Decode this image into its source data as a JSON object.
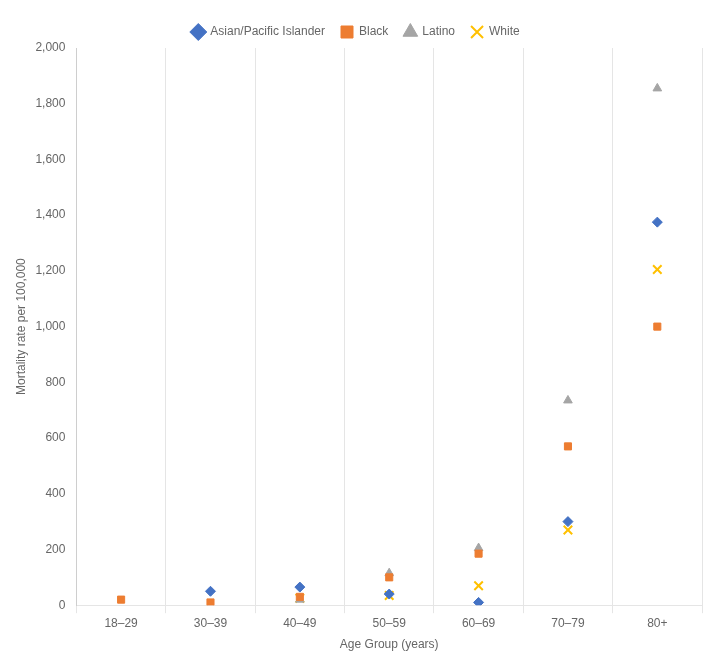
{
  "chart_data": {
    "type": "scatter",
    "x_label": "Age Group (years)",
    "y_label": "Mortality rate per 100,000",
    "categories": [
      "18–29",
      "30–39",
      "40–49",
      "50–59",
      "60–69",
      "70–79",
      "80+"
    ],
    "series": [
      {
        "name": "Asian/Pacific Islander",
        "color": "#4472C4",
        "marker": "diamond",
        "values": [
          null,
          50,
          65,
          40,
          10,
          300,
          1375
        ]
      },
      {
        "name": "Black",
        "color": "#ED7D31",
        "marker": "square",
        "values": [
          20,
          10,
          30,
          100,
          185,
          570,
          1000
        ]
      },
      {
        "name": "Latino",
        "color": "#A5A5A5",
        "marker": "triangle",
        "values": [
          null,
          null,
          20,
          115,
          205,
          735,
          1855
        ]
      },
      {
        "name": "White",
        "color": "#FFC000",
        "marker": "x",
        "values": [
          null,
          null,
          25,
          35,
          70,
          270,
          1205
        ]
      }
    ],
    "ylim": [
      0,
      2000
    ],
    "yticks": [
      0,
      200,
      400,
      600,
      800,
      {
        "value": 1000,
        "label": "1,000"
      },
      {
        "value": 1200,
        "label": "1,200"
      },
      {
        "value": 1400,
        "label": "1,400"
      },
      {
        "value": 1600,
        "label": "1,600"
      },
      {
        "value": 1800,
        "label": "1,800"
      },
      {
        "value": 2000,
        "label": "2,000"
      }
    ],
    "grid": "x",
    "legend": "top"
  }
}
